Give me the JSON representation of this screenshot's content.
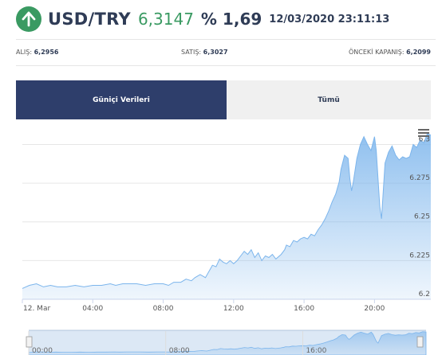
{
  "header": {
    "icon": "up-arrow-icon",
    "pair": "USD/TRY",
    "price": "6,3147",
    "change": "% 1,69",
    "datetime": "12/03/2020 23:11:13",
    "up_color": "#3a9a62"
  },
  "info": {
    "alis_label": "ALIŞ:",
    "alis_value": "6,2956",
    "satis_label": "SATIŞ:",
    "satis_value": "6,3027",
    "onceki_label": "ÖNCEKİ KAPANIŞ:",
    "onceki_value": "6,2099"
  },
  "tabs": [
    {
      "label": "Güniçi Verileri",
      "active": true
    },
    {
      "label": "Tümü",
      "active": false
    }
  ],
  "chart_data": {
    "type": "area",
    "menu_icon": "hamburger-menu-icon",
    "x_ticks": [
      "12. Mar",
      "04:00",
      "08:00",
      "12:00",
      "16:00",
      "20:00"
    ],
    "y_ticks": [
      "6.2",
      "6.225",
      "6.25",
      "6.275",
      "6.3"
    ],
    "ylim": [
      6.2,
      6.31
    ],
    "xlim_hours": [
      0,
      23.2
    ],
    "series_color": "#7cb5ec",
    "points": [
      [
        0,
        6.207
      ],
      [
        0.4,
        6.209
      ],
      [
        0.8,
        6.21
      ],
      [
        1.2,
        6.208
      ],
      [
        1.6,
        6.209
      ],
      [
        2,
        6.208
      ],
      [
        2.5,
        6.208
      ],
      [
        3,
        6.209
      ],
      [
        3.5,
        6.208
      ],
      [
        4,
        6.209
      ],
      [
        4.5,
        6.209
      ],
      [
        5,
        6.21
      ],
      [
        5.3,
        6.209
      ],
      [
        5.7,
        6.21
      ],
      [
        6,
        6.21
      ],
      [
        6.5,
        6.21
      ],
      [
        7,
        6.209
      ],
      [
        7.5,
        6.21
      ],
      [
        8,
        6.21
      ],
      [
        8.3,
        6.209
      ],
      [
        8.6,
        6.211
      ],
      [
        9,
        6.211
      ],
      [
        9.3,
        6.213
      ],
      [
        9.6,
        6.212
      ],
      [
        9.8,
        6.214
      ],
      [
        10.1,
        6.216
      ],
      [
        10.4,
        6.214
      ],
      [
        10.6,
        6.218
      ],
      [
        10.8,
        6.222
      ],
      [
        11,
        6.221
      ],
      [
        11.2,
        6.226
      ],
      [
        11.4,
        6.224
      ],
      [
        11.6,
        6.223
      ],
      [
        11.8,
        6.225
      ],
      [
        12,
        6.223
      ],
      [
        12.2,
        6.225
      ],
      [
        12.4,
        6.228
      ],
      [
        12.6,
        6.231
      ],
      [
        12.8,
        6.229
      ],
      [
        13,
        6.232
      ],
      [
        13.2,
        6.227
      ],
      [
        13.4,
        6.23
      ],
      [
        13.6,
        6.225
      ],
      [
        13.8,
        6.228
      ],
      [
        14,
        6.227
      ],
      [
        14.2,
        6.229
      ],
      [
        14.4,
        6.226
      ],
      [
        14.7,
        6.229
      ],
      [
        14.9,
        6.232
      ],
      [
        15,
        6.235
      ],
      [
        15.2,
        6.234
      ],
      [
        15.4,
        6.238
      ],
      [
        15.6,
        6.237
      ],
      [
        15.8,
        6.239
      ],
      [
        16,
        6.24
      ],
      [
        16.2,
        6.239
      ],
      [
        16.4,
        6.242
      ],
      [
        16.6,
        6.241
      ],
      [
        16.8,
        6.245
      ],
      [
        17,
        6.248
      ],
      [
        17.2,
        6.252
      ],
      [
        17.4,
        6.257
      ],
      [
        17.6,
        6.263
      ],
      [
        17.8,
        6.268
      ],
      [
        18,
        6.276
      ],
      [
        18.1,
        6.284
      ],
      [
        18.3,
        6.293
      ],
      [
        18.5,
        6.291
      ],
      [
        18.6,
        6.278
      ],
      [
        18.7,
        6.27
      ],
      [
        18.8,
        6.276
      ],
      [
        19,
        6.291
      ],
      [
        19.2,
        6.3
      ],
      [
        19.4,
        6.305
      ],
      [
        19.6,
        6.3
      ],
      [
        19.8,
        6.296
      ],
      [
        20,
        6.305
      ],
      [
        20.1,
        6.296
      ],
      [
        20.2,
        6.278
      ],
      [
        20.3,
        6.26
      ],
      [
        20.4,
        6.252
      ],
      [
        20.6,
        6.288
      ],
      [
        20.8,
        6.295
      ],
      [
        21,
        6.299
      ],
      [
        21.2,
        6.293
      ],
      [
        21.4,
        6.29
      ],
      [
        21.6,
        6.292
      ],
      [
        21.8,
        6.291
      ],
      [
        22,
        6.292
      ],
      [
        22.2,
        6.3
      ],
      [
        22.4,
        6.298
      ],
      [
        22.6,
        6.303
      ],
      [
        22.8,
        6.301
      ],
      [
        23,
        6.307
      ],
      [
        23.2,
        6.306
      ]
    ]
  },
  "navigator": {
    "x_ticks": [
      "00:00",
      "08:00",
      "16:00"
    ]
  }
}
